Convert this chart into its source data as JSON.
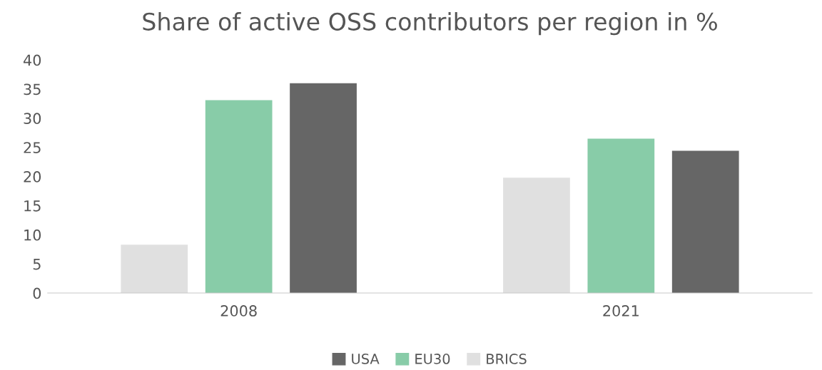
{
  "chart_data": {
    "type": "bar",
    "title": "Share of active OSS contributors per region in %",
    "categories": [
      "2008",
      "2021"
    ],
    "series": [
      {
        "name": "BRICS",
        "color": "#e0e0e0",
        "values": [
          8.3,
          19.8
        ]
      },
      {
        "name": "EU30",
        "color": "#88cca8",
        "values": [
          33.1,
          26.5
        ]
      },
      {
        "name": "USA",
        "color": "#666666",
        "values": [
          36.0,
          24.4
        ]
      }
    ],
    "ylim": [
      0,
      40
    ],
    "yticks": [
      0,
      5,
      10,
      15,
      20,
      25,
      30,
      35,
      40
    ],
    "grid": false,
    "legend": "bottom"
  }
}
